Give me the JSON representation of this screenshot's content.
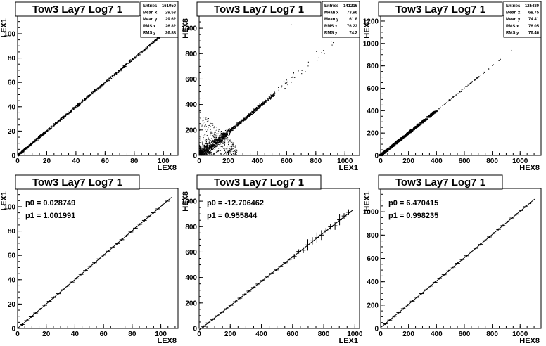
{
  "panels": [
    {
      "title": "Tow3 Lay7 Log7 1",
      "xlabel": "LEX8",
      "ylabel": "LEX1",
      "xlim": [
        0,
        110
      ],
      "ylim": [
        0,
        115
      ],
      "xticks": [
        0,
        20,
        40,
        60,
        80,
        100
      ],
      "yticks": [
        0,
        20,
        40,
        60,
        80,
        100
      ],
      "stats": [
        [
          "Entries",
          "161050"
        ],
        [
          "Mean x",
          "29.53"
        ],
        [
          "Mean y",
          "29.62"
        ],
        [
          "RMS x",
          "26.82"
        ],
        [
          "RMS y",
          "26.88"
        ]
      ]
    },
    {
      "title": "Tow3 Lay7 Log7 1",
      "xlabel": "LEX1",
      "ylabel": "HEX8",
      "xlim": [
        0,
        1100
      ],
      "ylim": [
        0,
        1100
      ],
      "xticks": [
        0,
        200,
        400,
        600,
        800,
        1000
      ],
      "yticks": [
        0,
        200,
        400,
        600,
        800,
        1000
      ],
      "stats": [
        [
          "Entries",
          "141216"
        ],
        [
          "Mean x",
          "73.96"
        ],
        [
          "Mean y",
          "61.8"
        ],
        [
          "RMS x",
          "76.22"
        ],
        [
          "RMS y",
          "74.2"
        ]
      ]
    },
    {
      "title": "Tow3 Lay7 Log7 1",
      "xlabel": "HEX8",
      "ylabel": "HEX1",
      "xlim": [
        0,
        1150
      ],
      "ylim": [
        0,
        1250
      ],
      "xticks": [
        0,
        200,
        400,
        600,
        800,
        1000
      ],
      "yticks": [
        0,
        200,
        400,
        600,
        800,
        1000,
        1200
      ],
      "stats": [
        [
          "Entries",
          "125480"
        ],
        [
          "Mean x",
          "68.75"
        ],
        [
          "Mean y",
          "74.41"
        ],
        [
          "RMS x",
          "76.05"
        ],
        [
          "RMS y",
          "76.46"
        ]
      ]
    },
    {
      "title": "Tow3 Lay7 Log7 1",
      "xlabel": "LEX8",
      "ylabel": "LEX1",
      "xlim": [
        0,
        112
      ],
      "ylim": [
        0,
        115
      ],
      "xticks": [
        0,
        20,
        40,
        60,
        80,
        100
      ],
      "yticks": [
        0,
        20,
        40,
        60,
        80,
        100
      ],
      "fit": [
        "p0 = 0.028749",
        "p1 = 1.001991"
      ]
    },
    {
      "title": "Tow3 Lay7 Log7 1",
      "xlabel": "LEX1",
      "ylabel": "HEX8",
      "xlim": [
        0,
        1030
      ],
      "ylim": [
        0,
        1100
      ],
      "xticks": [
        0,
        200,
        400,
        600,
        800,
        1000
      ],
      "yticks": [
        0,
        200,
        400,
        600,
        800,
        1000
      ],
      "fit": [
        "p0 = -12.706462",
        "p1 = 0.955844"
      ]
    },
    {
      "title": "Tow3 Lay7 Log7 1",
      "xlabel": "HEX8",
      "ylabel": "HEX1",
      "xlim": [
        0,
        1150
      ],
      "ylim": [
        0,
        1200
      ],
      "xticks": [
        0,
        200,
        400,
        600,
        800,
        1000
      ],
      "yticks": [
        0,
        200,
        400,
        600,
        800,
        1000
      ],
      "fit": [
        "p0 = 6.470415",
        "p1 = 0.998235"
      ]
    }
  ],
  "chart_data": [
    {
      "type": "scatter",
      "title": "Tow3 Lay7 Log7 1",
      "xlabel": "LEX8",
      "ylabel": "LEX1",
      "xlim": [
        0,
        110
      ],
      "ylim": [
        0,
        115
      ],
      "series": [
        {
          "x": [
            0,
            10,
            20,
            30,
            40,
            50,
            60,
            70,
            80,
            90,
            100
          ],
          "y": [
            0,
            10,
            20,
            30,
            40,
            50,
            60,
            70,
            80,
            90,
            100
          ]
        }
      ]
    },
    {
      "type": "scatter",
      "title": "Tow3 Lay7 Log7 1",
      "xlabel": "LEX1",
      "ylabel": "HEX8",
      "xlim": [
        0,
        1100
      ],
      "ylim": [
        0,
        1100
      ],
      "series": [
        {
          "x": [
            0,
            100,
            200,
            300,
            400,
            500,
            600,
            700,
            800,
            900
          ],
          "y": [
            0,
            95,
            190,
            285,
            380,
            470,
            560,
            650,
            740,
            860
          ]
        }
      ]
    },
    {
      "type": "scatter",
      "title": "Tow3 Lay7 Log7 1",
      "xlabel": "HEX8",
      "ylabel": "HEX1",
      "xlim": [
        0,
        1150
      ],
      "ylim": [
        0,
        1250
      ],
      "series": [
        {
          "x": [
            0,
            100,
            200,
            300,
            400,
            500,
            600,
            700,
            800,
            900
          ],
          "y": [
            0,
            100,
            200,
            300,
            400,
            500,
            600,
            700,
            800,
            900
          ]
        }
      ]
    },
    {
      "type": "line",
      "title": "Tow3 Lay7 Log7 1",
      "xlabel": "LEX8",
      "ylabel": "LEX1",
      "xlim": [
        0,
        112
      ],
      "ylim": [
        0,
        115
      ],
      "fit": {
        "p0": 0.028749,
        "p1": 1.001991
      },
      "series": [
        {
          "x": [
            5,
            15,
            25,
            35,
            45,
            55,
            65,
            75,
            85,
            95,
            105
          ],
          "y": [
            5.04,
            15.06,
            25.08,
            35.1,
            45.12,
            55.14,
            65.16,
            75.18,
            85.2,
            95.22,
            105.24
          ]
        }
      ]
    },
    {
      "type": "line",
      "title": "Tow3 Lay7 Log7 1",
      "xlabel": "LEX1",
      "ylabel": "HEX8",
      "xlim": [
        0,
        1030
      ],
      "ylim": [
        0,
        1100
      ],
      "fit": {
        "p0": -12.706462,
        "p1": 0.955844
      },
      "series": [
        {
          "x": [
            50,
            150,
            250,
            350,
            450,
            550,
            650,
            750,
            850
          ],
          "y": [
            35,
            131,
            226,
            322,
            417,
            513,
            608,
            704,
            800
          ]
        }
      ]
    },
    {
      "type": "line",
      "title": "Tow3 Lay7 Log7 1",
      "xlabel": "HEX8",
      "ylabel": "HEX1",
      "xlim": [
        0,
        1150
      ],
      "ylim": [
        0,
        1200
      ],
      "fit": {
        "p0": 6.470415,
        "p1": 0.998235
      },
      "series": [
        {
          "x": [
            50,
            150,
            250,
            350,
            450,
            550,
            650,
            750,
            850,
            950,
            1050
          ],
          "y": [
            56,
            156,
            256,
            356,
            456,
            556,
            655,
            755,
            855,
            955,
            1055
          ]
        }
      ]
    }
  ]
}
